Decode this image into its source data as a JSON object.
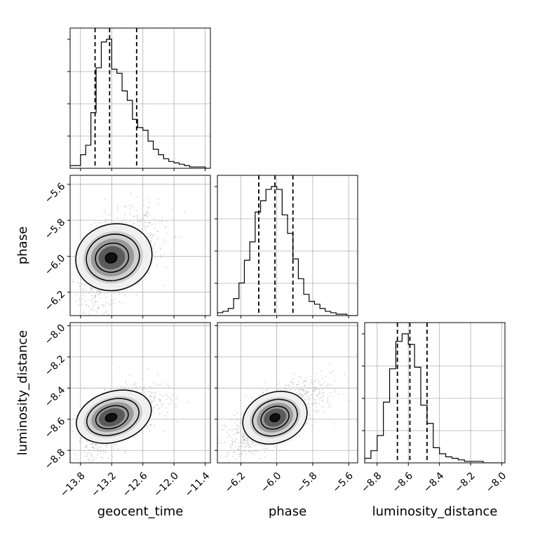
{
  "chart_data": {
    "type": "corner",
    "parameters": [
      "geocent_time",
      "phase",
      "luminosity_distance"
    ],
    "ranges": {
      "geocent_time": [
        -14.0,
        -11.3
      ],
      "phase": [
        -6.33,
        -5.55
      ],
      "luminosity_distance": [
        -8.88,
        -7.98
      ]
    },
    "ticks": {
      "geocent_time": [
        -13.8,
        -13.2,
        -12.6,
        -12.0,
        -11.4
      ],
      "phase_x": [
        -6.2,
        -6.0,
        -5.8,
        -5.6
      ],
      "phase_y": [
        -6.2,
        -6.0,
        -5.8,
        -5.6
      ],
      "luminosity_distance_x": [
        -8.8,
        -8.6,
        -8.4,
        -8.2,
        -8.0
      ],
      "luminosity_distance_y": [
        -8.8,
        -8.6,
        -8.4,
        -8.2,
        -8.0
      ]
    },
    "tick_labels": {
      "geocent_time": [
        "−13.8",
        "−13.2",
        "−12.6",
        "−12.0",
        "−11.4"
      ],
      "phase": [
        "−6.2",
        "−6.0",
        "−5.8",
        "−5.6"
      ],
      "luminosity_distance": [
        "−8.8",
        "−8.6",
        "−8.4",
        "−8.2",
        "−8.0"
      ]
    },
    "axis_labels": {
      "bottom": [
        "geocent_time",
        "phase",
        "luminosity_distance"
      ],
      "left": [
        "phase",
        "luminosity_distance"
      ]
    },
    "histograms": {
      "geocent_time": {
        "bin_edges": [
          -14.0,
          -13.9,
          -13.8,
          -13.7,
          -13.6,
          -13.5,
          -13.4,
          -13.3,
          -13.2,
          -13.1,
          -13.0,
          -12.9,
          -12.8,
          -12.7,
          -12.6,
          -12.5,
          -12.4,
          -12.3,
          -12.2,
          -12.1,
          -12.0,
          -11.9,
          -11.8,
          -11.7,
          -11.6,
          -11.5,
          -11.4,
          -11.3
        ],
        "counts": [
          0.02,
          0.02,
          0.1,
          0.17,
          0.41,
          0.74,
          0.93,
          0.95,
          0.73,
          0.7,
          0.57,
          0.5,
          0.36,
          0.3,
          0.28,
          0.2,
          0.14,
          0.1,
          0.07,
          0.05,
          0.04,
          0.03,
          0.02,
          0.01,
          0.01,
          0.01,
          0.0
        ],
        "quantiles": [
          -13.52,
          -13.24,
          -12.72
        ]
      },
      "phase": {
        "bin_edges": [
          -6.33,
          -6.3,
          -6.27,
          -6.24,
          -6.21,
          -6.18,
          -6.15,
          -6.12,
          -6.09,
          -6.06,
          -6.03,
          -6.0,
          -5.97,
          -5.94,
          -5.91,
          -5.88,
          -5.85,
          -5.82,
          -5.79,
          -5.76,
          -5.73,
          -5.7,
          -5.67,
          -5.64,
          -5.61,
          -5.58,
          -5.55
        ],
        "counts": [
          0.02,
          0.03,
          0.05,
          0.12,
          0.23,
          0.39,
          0.52,
          0.73,
          0.81,
          0.89,
          0.91,
          0.89,
          0.71,
          0.58,
          0.4,
          0.26,
          0.15,
          0.1,
          0.08,
          0.05,
          0.03,
          0.02,
          0.01,
          0.01,
          0.0,
          0.0
        ],
        "quantiles": [
          -6.1,
          -6.01,
          -5.91
        ]
      },
      "luminosity_distance": {
        "bin_edges": [
          -8.88,
          -8.84,
          -8.8,
          -8.76,
          -8.72,
          -8.68,
          -8.64,
          -8.6,
          -8.56,
          -8.52,
          -8.48,
          -8.44,
          -8.4,
          -8.36,
          -8.32,
          -8.28,
          -8.24,
          -8.2,
          -8.16,
          -8.12,
          -8.08,
          -8.04,
          -8.0,
          -7.98
        ],
        "counts": [
          0.03,
          0.08,
          0.18,
          0.4,
          0.62,
          0.8,
          0.85,
          0.78,
          0.63,
          0.38,
          0.26,
          0.1,
          0.06,
          0.04,
          0.03,
          0.02,
          0.01,
          0.01,
          0.01,
          0.0,
          0.0,
          0.0,
          0.0
        ],
        "quantiles": [
          -8.67,
          -8.59,
          -8.48
        ]
      }
    },
    "joint_2d": [
      {
        "x": "geocent_time",
        "y": "phase",
        "center": [
          -13.22,
          -6.01
        ],
        "sigma": [
          0.28,
          0.08
        ],
        "rho": 0.45,
        "scatter_sigma": [
          0.45,
          0.12
        ]
      },
      {
        "x": "geocent_time",
        "y": "luminosity_distance",
        "center": [
          -13.22,
          -8.59
        ],
        "sigma": [
          0.28,
          0.07
        ],
        "rho": 0.55,
        "scatter_sigma": [
          0.45,
          0.1
        ]
      },
      {
        "x": "phase",
        "y": "luminosity_distance",
        "center": [
          -6.01,
          -8.59
        ],
        "sigma": [
          0.08,
          0.07
        ],
        "rho": 0.7,
        "scatter_sigma": [
          0.13,
          0.11
        ]
      }
    ],
    "grid": true,
    "quantile_line_style": "dashed"
  }
}
